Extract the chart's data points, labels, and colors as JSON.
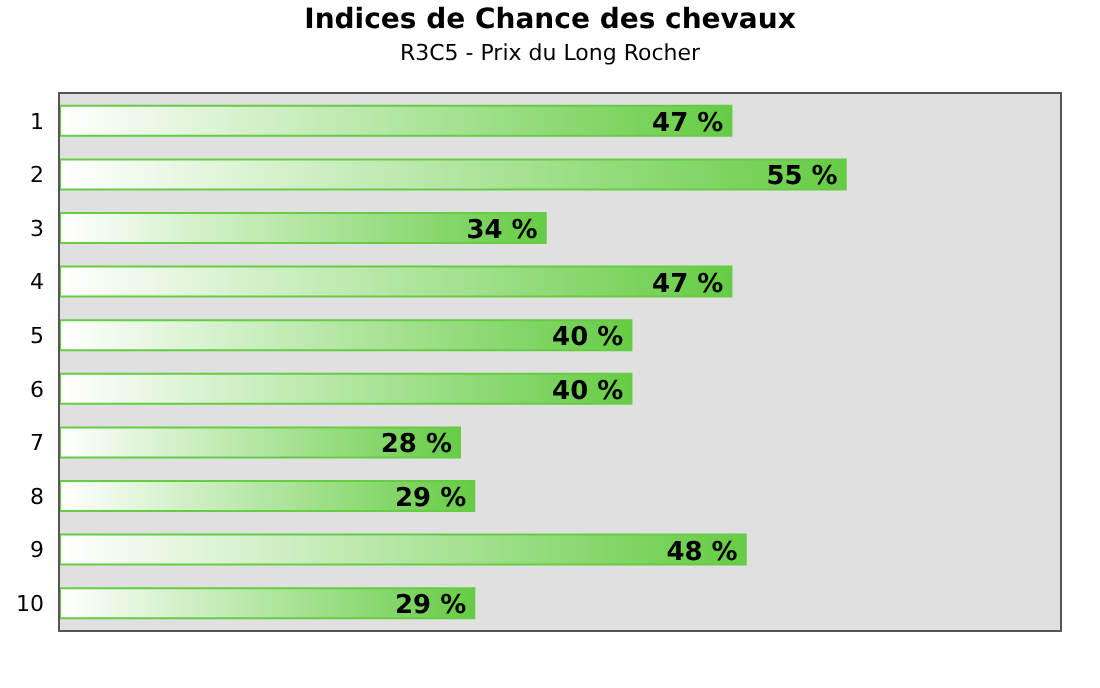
{
  "chart_data": {
    "type": "bar",
    "orientation": "horizontal",
    "title": "Indices de Chance des chevaux",
    "subtitle": "R3C5 - Prix du Long Rocher",
    "categories": [
      "1",
      "2",
      "3",
      "4",
      "5",
      "6",
      "7",
      "8",
      "9",
      "10"
    ],
    "values": [
      47,
      55,
      34,
      47,
      40,
      40,
      28,
      29,
      48,
      29
    ],
    "value_labels": [
      "47 %",
      "55 %",
      "34 %",
      "47 %",
      "40 %",
      "40 %",
      "28 %",
      "29 %",
      "48 %",
      "29 %"
    ],
    "color": "#66cc44",
    "xlim": [
      0,
      70
    ],
    "tick_labels": "y"
  }
}
